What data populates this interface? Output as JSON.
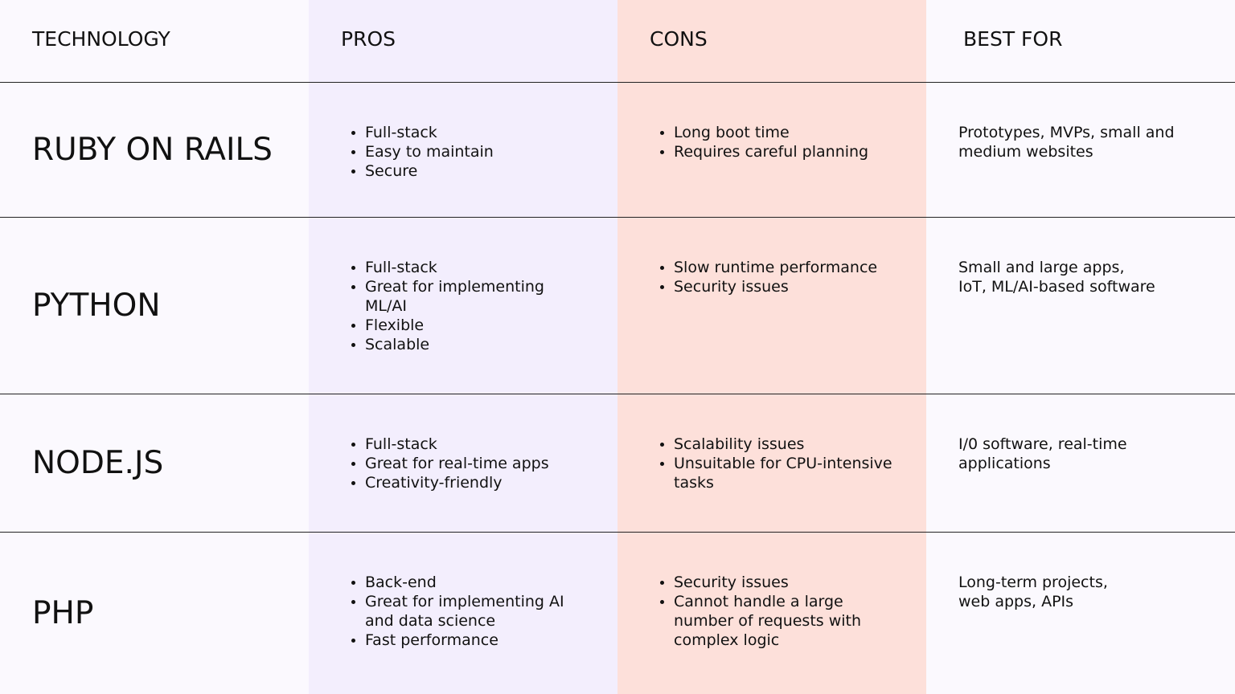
{
  "header": {
    "technology": "TECHNOLOGY",
    "pros": "PROS",
    "cons": "CONS",
    "best_for": "BEST FOR"
  },
  "rows": [
    {
      "technology": "RUBY ON RAILS",
      "pros": [
        "Full-stack",
        "Easy to maintain",
        "Secure"
      ],
      "cons": [
        "Long boot time",
        "Requires careful planning"
      ],
      "best_for": "Prototypes, MVPs, small and\nmedium websites"
    },
    {
      "technology": "PYTHON",
      "pros": [
        "Full-stack",
        "Great for implementing ML/AI",
        "Flexible",
        "Scalable"
      ],
      "cons": [
        "Slow runtime performance",
        "Security issues"
      ],
      "best_for": "Small and large apps,\nIoT, ML/AI-based software"
    },
    {
      "technology": "NODE.JS",
      "pros": [
        "Full-stack",
        "Great for real-time apps",
        "Creativity-friendly"
      ],
      "cons": [
        "Scalability issues",
        "Unsuitable for CPU-intensive tasks"
      ],
      "best_for": "I/0 software, real-time\napplications"
    },
    {
      "technology": "PHP",
      "pros": [
        "Back-end",
        "Great for implementing AI and data science",
        "Fast performance"
      ],
      "cons": [
        "Security issues",
        "Cannot handle a large number of requests with complex logic"
      ],
      "best_for": "Long-term projects,\nweb apps, APIs"
    }
  ]
}
